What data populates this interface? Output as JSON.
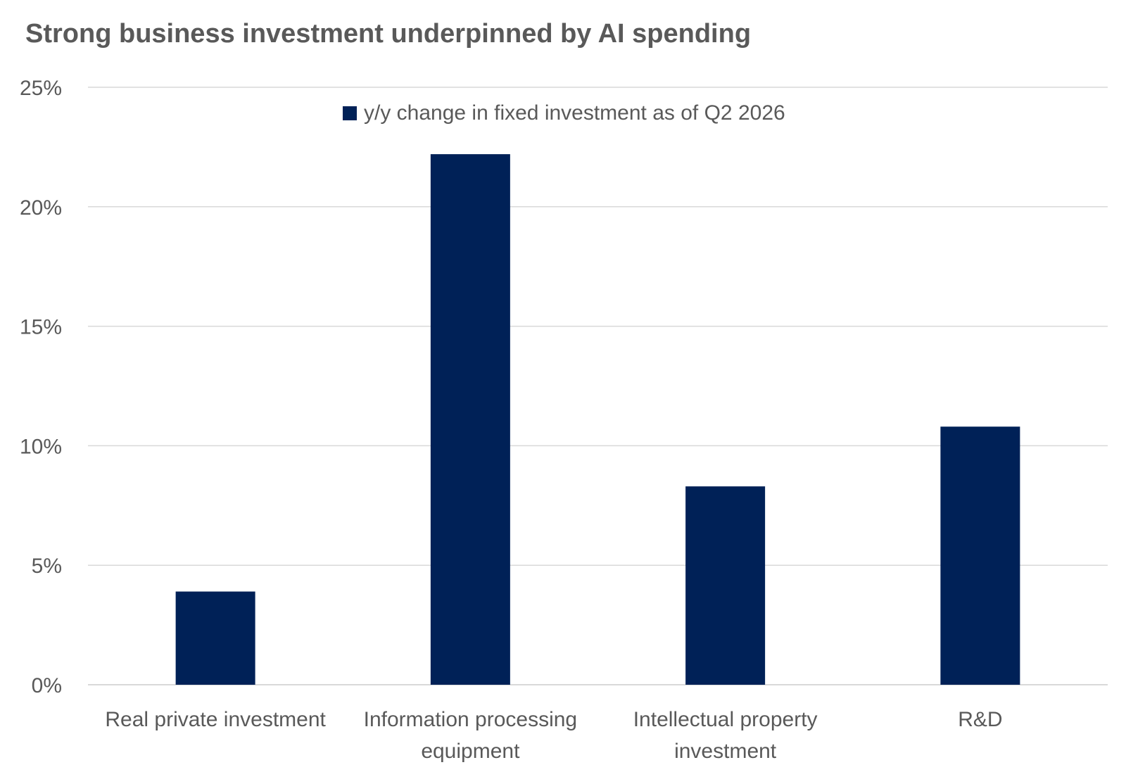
{
  "chart_data": {
    "type": "bar",
    "title": "Strong business investment underpinned by AI spending",
    "categories": [
      [
        "Real private investment"
      ],
      [
        "Information processing",
        "equipment"
      ],
      [
        "Intellectual property",
        "investment"
      ],
      [
        "R&D"
      ]
    ],
    "series": [
      {
        "name": "y/y change in fixed investment as of Q2 2026",
        "values": [
          3.9,
          22.2,
          8.3,
          10.8
        ],
        "color": "#002157"
      }
    ],
    "ylim": [
      0,
      25
    ],
    "yticks": [
      0,
      5,
      10,
      15,
      20,
      25
    ],
    "ytick_suffix": "%",
    "grid": true,
    "legend_position": "top-center",
    "xlabel": "",
    "ylabel": ""
  }
}
